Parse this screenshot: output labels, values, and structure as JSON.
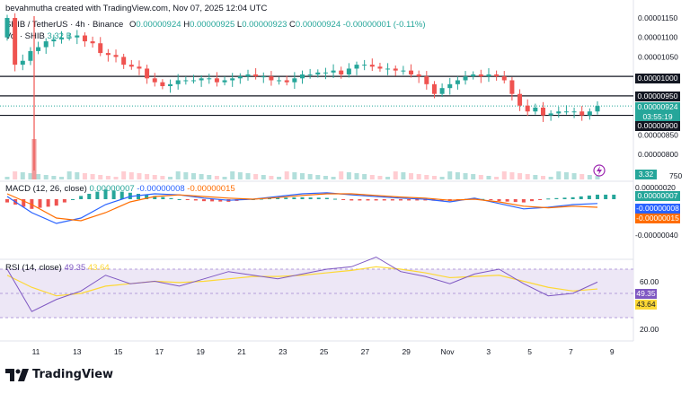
{
  "header": {
    "attribution": "bevahmutha created with TradingView.com, Nov 07, 2025 12:04 UTC",
    "symbol_line": "SHIB / TetherUS · 4h · Binance",
    "ohlc": {
      "o_label": "O",
      "o": "0.00000924",
      "h_label": "H",
      "h": "0.00000925",
      "l_label": "L",
      "l": "0.00000923",
      "c_label": "C",
      "c": "0.00000924",
      "change": "-0.00000001 (-0.11%)"
    },
    "vol_label": "Vol · SHIB",
    "vol_value": "3.32 B"
  },
  "price_axis": {
    "ticks": [
      "0.00001150",
      "0.00001100",
      "0.00001050",
      "0.00001000",
      "0.00000950",
      "0.00000924",
      "0.00000900",
      "0.00000850",
      "0.00000800",
      "0.00000750"
    ],
    "countdown": "03:55:19",
    "current_price": "0.00000924",
    "volume_tag": "3.32 B"
  },
  "macd": {
    "label": "MACD (12, 26, close)",
    "values": [
      "0.00000007",
      "-0.00000008",
      "-0.00000015"
    ],
    "axis_ticks": [
      "0.00000020",
      "0.00000007",
      "-0.00000008",
      "-0.00000015",
      "-0.00000040"
    ]
  },
  "rsi": {
    "label": "RSI (14, close)",
    "value": "49.35",
    "ma_value": "43.64",
    "axis_ticks": [
      "60.00",
      "49.35",
      "43.64",
      "20.00"
    ]
  },
  "x_axis": [
    "11",
    "13",
    "15",
    "17",
    "19",
    "21",
    "23",
    "25",
    "27",
    "29",
    "Nov",
    "3",
    "5",
    "7",
    "9"
  ],
  "footer": {
    "logo_text": "TradingView"
  },
  "colors": {
    "up": "#26a69a",
    "down": "#ef5350",
    "macd_line": "#2962ff",
    "signal_line": "#ff6d00",
    "rsi_line": "#7e57c2",
    "rsi_ma": "#fdd835",
    "rsi_band": "#ede7f6"
  },
  "chart_data": [
    {
      "type": "candlestick",
      "title": "SHIB / TetherUS · 4h · Binance",
      "x": [
        "11",
        "13",
        "15",
        "17",
        "19",
        "21",
        "23",
        "25",
        "27",
        "29",
        "Nov",
        "3",
        "5",
        "7",
        "9"
      ],
      "ylim": [
        8e-06,
        1.16e-05
      ],
      "horizontal_levels": [
        1e-05,
        9.5e-06,
        9e-06
      ],
      "close_series": [
        11.5,
        10.3,
        10.4,
        10.65,
        10.75,
        10.9,
        10.95,
        11.0,
        11.0,
        11.05,
        10.9,
        10.85,
        10.6,
        10.55,
        10.5,
        10.3,
        10.25,
        10.2,
        9.95,
        9.85,
        9.75,
        9.8,
        9.9,
        9.9,
        9.9,
        9.95,
        9.95,
        9.85,
        9.9,
        9.95,
        10.0,
        10.05,
        10.0,
        10.0,
        9.9,
        9.9,
        9.85,
        9.95,
        10.05,
        10.05,
        10.1,
        10.1,
        10.15,
        10.05,
        10.2,
        10.3,
        10.3,
        10.25,
        10.2,
        10.2,
        10.15,
        10.15,
        10.05,
        10.0,
        9.8,
        9.55,
        9.7,
        9.8,
        9.9,
        10.0,
        10.05,
        10.0,
        10.05,
        10.0,
        9.9,
        9.55,
        9.25,
        9.1,
        9.2,
        9.0,
        9.05,
        9.1,
        9.1,
        9.1,
        9.0,
        9.1,
        9.24
      ],
      "note": "values in units of 1e-6 USDT"
    },
    {
      "type": "line",
      "title": "MACD (12, 26, close)",
      "series": [
        {
          "name": "MACD",
          "values": [
            0.05,
            -0.25,
            -0.45,
            -0.35,
            -0.1,
            0.05,
            0.1,
            0.08,
            0.02,
            -0.02,
            0.0,
            0.05,
            0.1,
            0.12,
            0.08,
            0.05,
            0.02,
            0.0,
            -0.05,
            0.02,
            -0.08,
            -0.18,
            -0.15,
            -0.1,
            -0.08
          ]
        },
        {
          "name": "Signal",
          "values": [
            0.1,
            -0.1,
            -0.35,
            -0.4,
            -0.25,
            -0.05,
            0.05,
            0.08,
            0.05,
            0.02,
            0.0,
            0.03,
            0.07,
            0.1,
            0.1,
            0.07,
            0.04,
            0.02,
            -0.02,
            0.0,
            -0.05,
            -0.13,
            -0.16,
            -0.13,
            -0.15
          ]
        }
      ]
    },
    {
      "type": "line",
      "title": "RSI (14, close)",
      "ylim": [
        20,
        80
      ],
      "series": [
        {
          "name": "RSI",
          "values": [
            60,
            25,
            35,
            42,
            55,
            48,
            50,
            46,
            52,
            58,
            55,
            52,
            56,
            60,
            62,
            70,
            58,
            54,
            48,
            56,
            60,
            48,
            38,
            40,
            49.35
          ]
        },
        {
          "name": "RSI MA",
          "values": [
            55,
            45,
            38,
            40,
            46,
            48,
            50,
            49,
            50,
            52,
            54,
            54,
            55,
            57,
            59,
            62,
            60,
            57,
            53,
            54,
            55,
            50,
            45,
            42,
            43.64
          ]
        }
      ]
    }
  ]
}
